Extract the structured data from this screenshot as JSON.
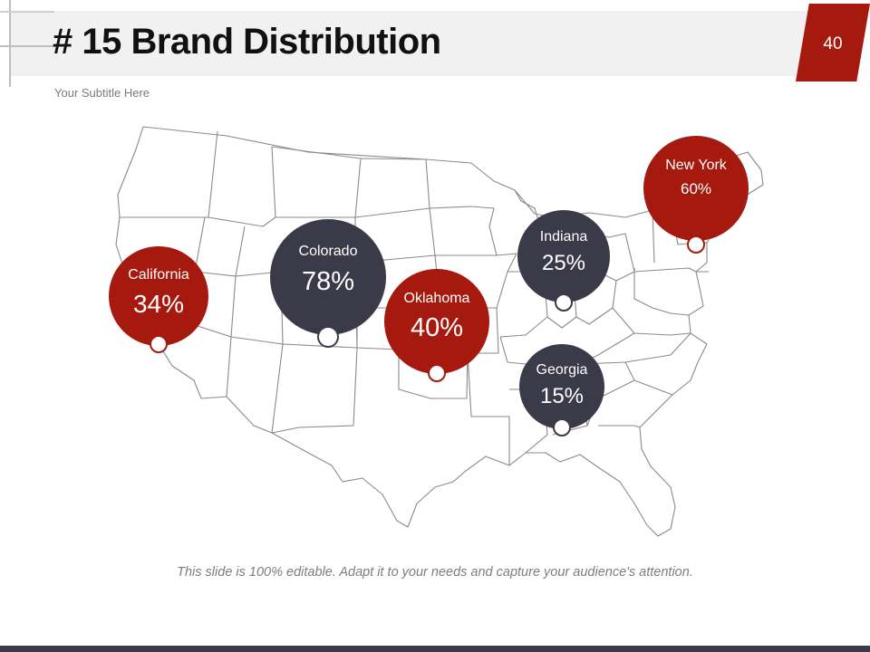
{
  "slide": {
    "title": "# 15 Brand Distribution",
    "subtitle": "Your Subtitle Here",
    "page_number": "40",
    "footer": "This slide is 100% editable. Adapt it to your needs and capture your audience's attention."
  },
  "colors": {
    "accent_red": "#a6190e",
    "dark": "#3b3a48",
    "map_stroke": "#8a8a8a",
    "title_bar": "#f1f1f1"
  },
  "locations": [
    {
      "name": "California",
      "value": "34%",
      "color": "#a6190e"
    },
    {
      "name": "Colorado",
      "value": "78%",
      "color": "#3b3a48"
    },
    {
      "name": "Oklahoma",
      "value": "40%",
      "color": "#a6190e"
    },
    {
      "name": "Indiana",
      "value": "25%",
      "color": "#3b3a48"
    },
    {
      "name": "Georgia",
      "value": "15%",
      "color": "#3b3a48"
    },
    {
      "name": "New York",
      "value": "60%",
      "color": "#a6190e"
    }
  ]
}
